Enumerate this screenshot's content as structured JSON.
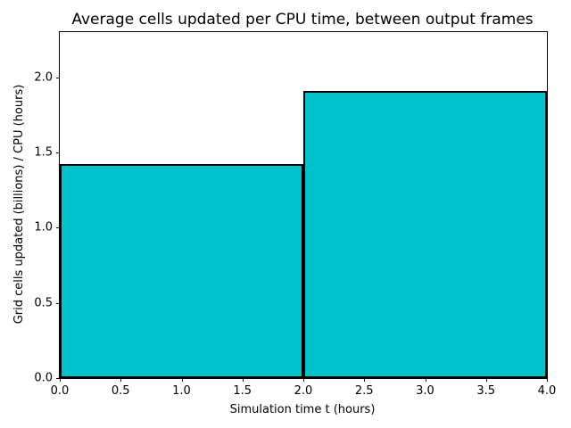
{
  "chart_data": {
    "type": "bar",
    "title": "Average cells updated per CPU time, between output frames",
    "xlabel": "Simulation time t (hours)",
    "ylabel": "Grid cells updated (billions) / CPU (hours)",
    "xlim": [
      0,
      4
    ],
    "ylim": [
      0,
      2.3
    ],
    "grid": false,
    "legend_position": "none",
    "bar_fill": "#00c2cb",
    "bar_edge": "#000000",
    "bars": [
      {
        "x0": 0,
        "x1": 2,
        "value": 1.42
      },
      {
        "x0": 2,
        "x1": 4,
        "value": 1.91
      }
    ],
    "xticks": [
      {
        "v": 0.0,
        "label": "0.0"
      },
      {
        "v": 0.5,
        "label": "0.5"
      },
      {
        "v": 1.0,
        "label": "1.0"
      },
      {
        "v": 1.5,
        "label": "1.5"
      },
      {
        "v": 2.0,
        "label": "2.0"
      },
      {
        "v": 2.5,
        "label": "2.5"
      },
      {
        "v": 3.0,
        "label": "3.0"
      },
      {
        "v": 3.5,
        "label": "3.5"
      },
      {
        "v": 4.0,
        "label": "4.0"
      }
    ],
    "yticks": [
      {
        "v": 0.0,
        "label": "0.0"
      },
      {
        "v": 0.5,
        "label": "0.5"
      },
      {
        "v": 1.0,
        "label": "1.0"
      },
      {
        "v": 1.5,
        "label": "1.5"
      },
      {
        "v": 2.0,
        "label": "2.0"
      }
    ]
  }
}
